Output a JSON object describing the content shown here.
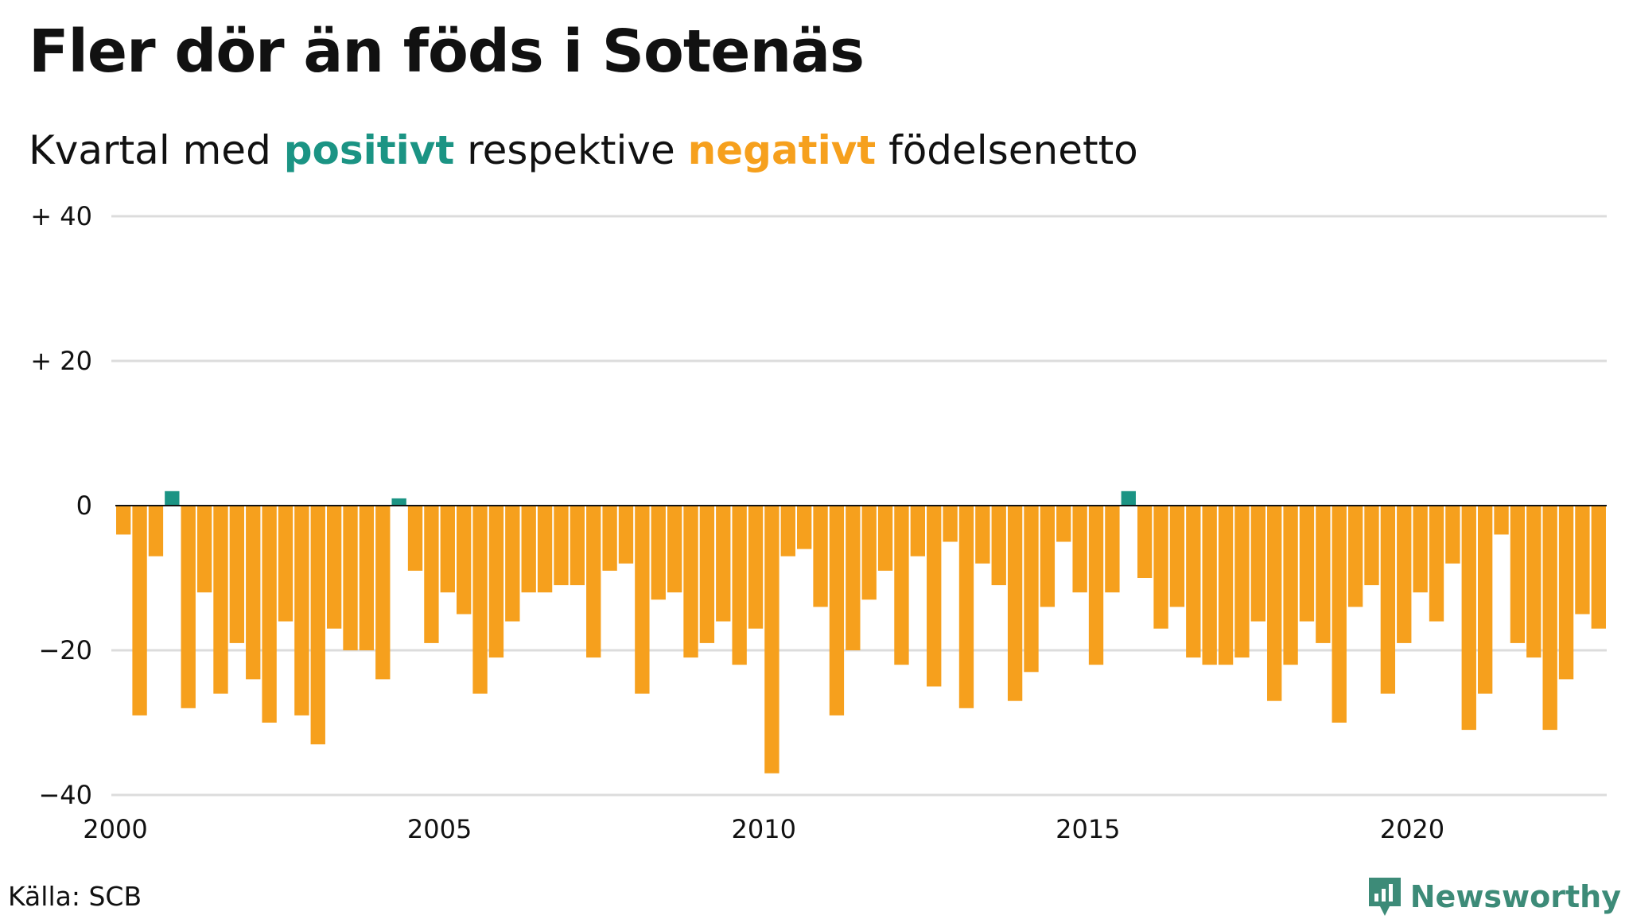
{
  "header": {
    "title": "Fler dör än föds i Sotenäs",
    "subtitle_prefix": "Kvartal med ",
    "subtitle_positive": "positivt",
    "subtitle_middle": " respektive ",
    "subtitle_negative": "negativt",
    "subtitle_suffix": " födelsenetto"
  },
  "footer": {
    "source": "Källa: SCB",
    "brand": "Newsworthy",
    "brand_icon": "bar-chart-logo-icon"
  },
  "colors": {
    "positive": "#1b9484",
    "negative": "#f6a01d",
    "grid": "#dcdcdc",
    "zero_line": "#111111",
    "brand": "#3d8b78"
  },
  "chart_data": {
    "type": "bar",
    "x_start": 2000.0,
    "x_step": 0.25,
    "xlim": [
      2000,
      2023
    ],
    "ylim": [
      -40,
      40
    ],
    "y_ticks": [
      40,
      20,
      0,
      -20,
      -40
    ],
    "y_tick_labels": [
      "+ 40",
      "+ 20",
      "0",
      "−20",
      "−40"
    ],
    "x_ticks": [
      2000,
      2005,
      2010,
      2015,
      2020
    ],
    "x_tick_labels": [
      "2000",
      "2005",
      "2010",
      "2015",
      "2020"
    ],
    "grid": true,
    "values": [
      -4,
      -29,
      -7,
      2,
      -28,
      -12,
      -26,
      -19,
      -24,
      -30,
      -16,
      -29,
      -33,
      -17,
      -20,
      -20,
      -24,
      1,
      -9,
      -19,
      -12,
      -15,
      -26,
      -21,
      -16,
      -12,
      -12,
      -11,
      -11,
      -21,
      -9,
      -8,
      -26,
      -13,
      -12,
      -21,
      -19,
      -16,
      -22,
      -17,
      -37,
      -7,
      -6,
      -14,
      -29,
      -20,
      -13,
      -9,
      -22,
      -7,
      -25,
      -5,
      -28,
      -8,
      -11,
      -27,
      -23,
      -14,
      -5,
      -12,
      -22,
      -12,
      2,
      -10,
      -17,
      -14,
      -21,
      -22,
      -22,
      -21,
      -16,
      -27,
      -22,
      -16,
      -19,
      -30,
      -14,
      -11,
      -26,
      -19,
      -12,
      -16,
      -8,
      -31,
      -26,
      -4,
      -19,
      -21,
      -31,
      -24,
      -15,
      -17
    ]
  }
}
